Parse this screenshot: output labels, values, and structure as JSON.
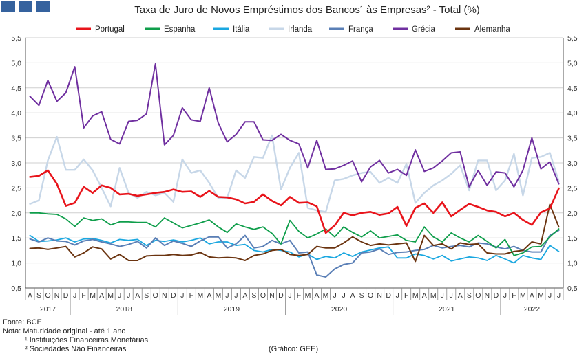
{
  "colors": {
    "header_block": "#35629e",
    "grid": "#cfcfcf",
    "axis": "#555555"
  },
  "chart_data": {
    "type": "line",
    "title": "Taxa de Juro de Novos Empréstimos dos Bancos¹ às Empresas² - Total (%)",
    "ylim": [
      0.5,
      5.5
    ],
    "yticks": [
      "0,5",
      "1,0",
      "1,5",
      "2,0",
      "2,5",
      "3,0",
      "3,5",
      "4,0",
      "4,5",
      "5,0",
      "5,5"
    ],
    "months": [
      "A",
      "S",
      "O",
      "N",
      "D",
      "J",
      "F",
      "M",
      "A",
      "M",
      "J",
      "J",
      "A",
      "S",
      "O",
      "N",
      "D",
      "J",
      "F",
      "M",
      "A",
      "M",
      "J",
      "J",
      "A",
      "S",
      "O",
      "N",
      "D",
      "J",
      "F",
      "M",
      "A",
      "M",
      "J",
      "J",
      "A",
      "S",
      "O",
      "N",
      "D",
      "J",
      "F",
      "M",
      "A",
      "M",
      "J",
      "J",
      "A",
      "S",
      "O",
      "N",
      "D",
      "J",
      "F",
      "M",
      "A",
      "M",
      "J",
      "J"
    ],
    "years": [
      {
        "label": "2017",
        "start": 0,
        "end": 4
      },
      {
        "label": "2018",
        "start": 5,
        "end": 16
      },
      {
        "label": "2019",
        "start": 17,
        "end": 28
      },
      {
        "label": "2020",
        "start": 29,
        "end": 40
      },
      {
        "label": "2021",
        "start": 41,
        "end": 52
      },
      {
        "label": "2022",
        "start": 53,
        "end": 59
      }
    ],
    "series": [
      {
        "name": "Portugal",
        "color": "#e8141b",
        "width": 2.6,
        "values": [
          2.72,
          2.74,
          2.85,
          2.58,
          2.14,
          2.2,
          2.52,
          2.4,
          2.55,
          2.5,
          2.37,
          2.38,
          2.34,
          2.37,
          2.4,
          2.42,
          2.47,
          2.42,
          2.43,
          2.32,
          2.44,
          2.32,
          2.31,
          2.27,
          2.19,
          2.22,
          2.37,
          2.24,
          2.15,
          2.32,
          2.2,
          2.21,
          2.13,
          1.6,
          1.75,
          2.0,
          1.95,
          2.0,
          2.02,
          1.96,
          1.99,
          2.12,
          1.74,
          2.1,
          2.19,
          2.0,
          2.21,
          1.93,
          2.06,
          2.18,
          2.12,
          2.05,
          2.02,
          1.93,
          2.0,
          1.86,
          1.76,
          2.01,
          2.09,
          2.49
        ]
      },
      {
        "name": "Espanha",
        "color": "#0f9e4b",
        "width": 1.8,
        "values": [
          2.0,
          2.0,
          1.98,
          1.97,
          1.88,
          1.73,
          1.9,
          1.85,
          1.88,
          1.76,
          1.82,
          1.82,
          1.81,
          1.81,
          1.72,
          1.9,
          1.8,
          1.7,
          1.75,
          1.8,
          1.86,
          1.72,
          1.61,
          1.78,
          1.72,
          1.67,
          1.72,
          1.59,
          1.38,
          1.85,
          1.63,
          1.5,
          1.58,
          1.68,
          1.52,
          1.72,
          1.61,
          1.52,
          1.64,
          1.5,
          1.53,
          1.56,
          1.45,
          1.42,
          1.72,
          1.52,
          1.42,
          1.6,
          1.5,
          1.42,
          1.55,
          1.43,
          1.3,
          1.47,
          1.15,
          1.2,
          1.32,
          1.33,
          1.52,
          1.68
        ]
      },
      {
        "name": "Itália",
        "color": "#1aa7e0",
        "width": 1.8,
        "values": [
          1.55,
          1.43,
          1.44,
          1.46,
          1.5,
          1.42,
          1.48,
          1.49,
          1.45,
          1.4,
          1.47,
          1.45,
          1.47,
          1.35,
          1.45,
          1.43,
          1.46,
          1.42,
          1.45,
          1.5,
          1.38,
          1.42,
          1.42,
          1.35,
          1.37,
          1.25,
          1.22,
          1.27,
          1.25,
          1.22,
          1.12,
          1.18,
          1.07,
          1.13,
          1.1,
          1.2,
          1.13,
          1.22,
          1.26,
          1.3,
          1.32,
          1.1,
          1.1,
          1.18,
          1.15,
          1.08,
          1.15,
          1.04,
          1.08,
          1.12,
          1.1,
          1.05,
          1.15,
          1.08,
          1.0,
          1.15,
          1.1,
          1.07,
          1.35,
          1.23
        ]
      },
      {
        "name": "Irlanda",
        "color": "#c7d7e8",
        "width": 2.4,
        "values": [
          2.18,
          2.25,
          3.05,
          3.52,
          2.86,
          2.86,
          3.07,
          2.85,
          2.5,
          2.13,
          2.9,
          2.4,
          2.3,
          2.42,
          2.35,
          2.4,
          2.22,
          3.07,
          2.8,
          2.85,
          2.6,
          2.3,
          2.3,
          2.85,
          2.7,
          3.12,
          3.1,
          3.55,
          2.47,
          2.9,
          3.2,
          2.1,
          2.05,
          2.02,
          2.65,
          2.68,
          2.75,
          2.8,
          2.82,
          2.6,
          2.7,
          2.6,
          2.98,
          2.2,
          2.4,
          2.55,
          2.65,
          2.78,
          2.95,
          2.45,
          3.05,
          3.05,
          2.45,
          2.65,
          3.18,
          2.35,
          3.1,
          3.12,
          3.2,
          2.63
        ]
      },
      {
        "name": "França",
        "color": "#5a7fb6",
        "width": 2.0,
        "values": [
          1.48,
          1.42,
          1.5,
          1.44,
          1.43,
          1.36,
          1.44,
          1.47,
          1.42,
          1.38,
          1.33,
          1.37,
          1.43,
          1.3,
          1.5,
          1.35,
          1.44,
          1.39,
          1.33,
          1.44,
          1.52,
          1.52,
          1.3,
          1.38,
          1.55,
          1.3,
          1.33,
          1.45,
          1.38,
          1.45,
          1.2,
          1.22,
          0.76,
          0.72,
          0.88,
          0.97,
          1.0,
          1.2,
          1.22,
          1.28,
          1.17,
          1.21,
          1.22,
          1.25,
          1.27,
          1.35,
          1.3,
          1.33,
          1.35,
          1.32,
          1.4,
          1.38,
          1.32,
          1.28,
          1.33,
          1.25,
          1.22,
          1.22,
          1.55,
          1.65
        ]
      },
      {
        "name": "Grécia",
        "color": "#7030a0",
        "width": 2.0,
        "values": [
          4.33,
          4.15,
          4.65,
          4.23,
          4.4,
          4.92,
          3.7,
          3.94,
          4.02,
          3.47,
          3.38,
          3.83,
          3.85,
          3.98,
          4.98,
          3.36,
          3.55,
          4.1,
          3.86,
          3.83,
          4.5,
          3.8,
          3.42,
          3.57,
          3.82,
          3.82,
          3.46,
          3.45,
          3.57,
          3.45,
          3.38,
          2.9,
          3.45,
          2.87,
          2.88,
          2.95,
          3.04,
          2.62,
          2.92,
          3.05,
          2.8,
          2.87,
          2.75,
          3.26,
          2.83,
          2.9,
          3.04,
          3.2,
          3.22,
          2.52,
          2.85,
          2.55,
          2.82,
          2.8,
          2.52,
          2.85,
          3.5,
          2.88,
          3.02,
          2.58
        ]
      },
      {
        "name": "Alemanha",
        "color": "#6b3410",
        "width": 2.0,
        "values": [
          1.29,
          1.3,
          1.27,
          1.3,
          1.33,
          1.12,
          1.2,
          1.32,
          1.28,
          1.08,
          1.17,
          1.05,
          1.05,
          1.14,
          1.15,
          1.15,
          1.17,
          1.15,
          1.16,
          1.21,
          1.12,
          1.1,
          1.11,
          1.1,
          1.05,
          1.15,
          1.18,
          1.25,
          1.27,
          1.17,
          1.15,
          1.17,
          1.33,
          1.3,
          1.3,
          1.4,
          1.52,
          1.42,
          1.35,
          1.38,
          1.36,
          1.38,
          1.4,
          1.03,
          1.55,
          1.35,
          1.38,
          1.28,
          1.4,
          1.37,
          1.38,
          1.2,
          1.18,
          1.18,
          1.23,
          1.25,
          1.42,
          1.38,
          2.17,
          1.72
        ]
      }
    ]
  },
  "source": {
    "line1": "Fonte: BCE",
    "line2": "Nota: Maturidade original - até 1 ano",
    "line3": "¹ Instituições Financeiras Monetárias",
    "line4": "² Sociedades Não Financeiras",
    "credit": "(Gráfico: GEE)"
  }
}
